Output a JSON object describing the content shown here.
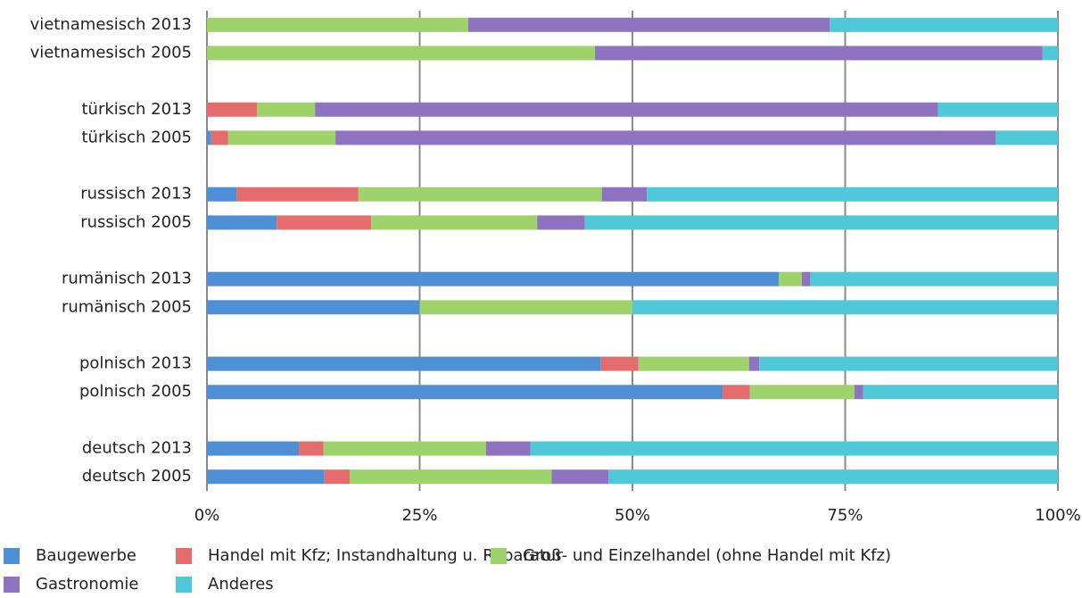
{
  "chart_data": {
    "type": "stacked-bar-horizontal",
    "categories": [
      "vietnamesisch 2013",
      "vietnamesisch 2005",
      null,
      "türkisch 2013",
      "türkisch 2005",
      null,
      "russisch 2013",
      "russisch 2005",
      null,
      "rumänisch 2013",
      "rumänisch 2005",
      null,
      "polnisch 2013",
      "polnisch 2005",
      null,
      "deutsch 2013",
      "deutsch 2005"
    ],
    "series": [
      {
        "name": "Baugewerbe",
        "color": "#4f8fd6",
        "values": [
          0,
          0,
          null,
          0,
          0.5,
          null,
          3.5,
          8.2,
          null,
          67.2,
          25,
          null,
          46.3,
          60.6,
          null,
          10.8,
          13.8
        ]
      },
      {
        "name": "Handel mit Kfz; Instandhaltung u. Reparatur",
        "color": "#e46c6c",
        "values": [
          0,
          0,
          null,
          5.9,
          2.0,
          null,
          14.3,
          11.1,
          null,
          0,
          0,
          null,
          4.4,
          3.2,
          null,
          2.9,
          3.0
        ]
      },
      {
        "name": "Groß- und Einzelhandel (ohne Handel mit Kfz)",
        "color": "#9ed26a",
        "values": [
          30.7,
          45.6,
          null,
          6.8,
          12.6,
          null,
          28.6,
          19.5,
          null,
          2.7,
          25,
          null,
          13.0,
          12.3,
          null,
          19.1,
          23.7
        ]
      },
      {
        "name": "Gastronomie",
        "color": "#8e74c0",
        "values": [
          42.5,
          52.6,
          null,
          73.2,
          77.6,
          null,
          5.3,
          5.6,
          null,
          1.0,
          0,
          null,
          1.2,
          1.0,
          null,
          5.2,
          6.7
        ]
      },
      {
        "name": "Anderes",
        "color": "#4fc8d8",
        "values": [
          26.8,
          1.8,
          null,
          14.1,
          7.3,
          null,
          48.3,
          55.6,
          null,
          29.1,
          50,
          null,
          35.1,
          22.9,
          null,
          62.0,
          52.8
        ]
      }
    ],
    "xlim": [
      0,
      100
    ],
    "xticks": [
      {
        "value": 0,
        "label": "0%"
      },
      {
        "value": 25,
        "label": "25%"
      },
      {
        "value": 50,
        "label": "50%"
      },
      {
        "value": 75,
        "label": "75%"
      },
      {
        "value": 100,
        "label": "100%"
      }
    ],
    "grid": true,
    "legend": "bottom"
  }
}
